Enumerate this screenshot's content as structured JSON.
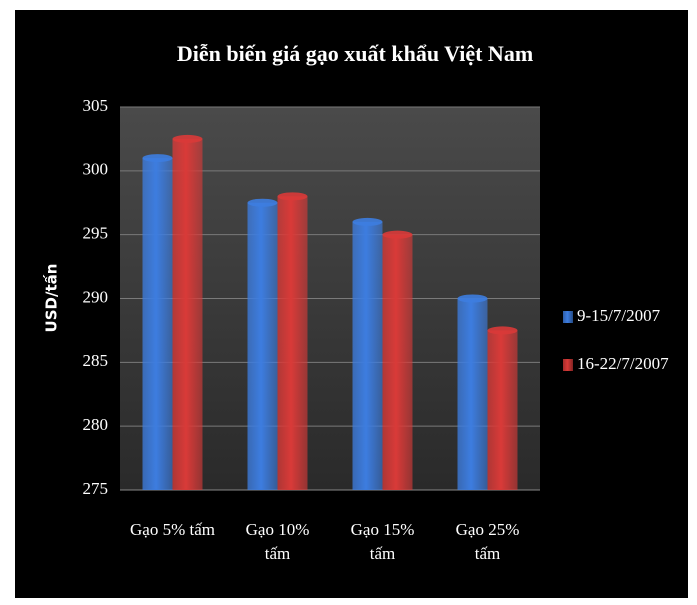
{
  "chart_data": {
    "type": "bar",
    "title": "Diễn biến giá gạo xuất khẩu Việt Nam",
    "y_label": "USD/tấn",
    "categories": [
      "Gạo 5% tấm",
      "Gạo 10% tấm",
      "Gạo 15% tấm",
      "Gạo 25% tấm"
    ],
    "series": [
      {
        "name": "9-15/7/2007",
        "color": "#3d7de0",
        "values": [
          301,
          297.5,
          296,
          290
        ]
      },
      {
        "name": "16-22/7/2007",
        "color": "#d93a38",
        "values": [
          302.5,
          298,
          295,
          287.5
        ]
      }
    ],
    "ylim": [
      275,
      305
    ],
    "yticks": [
      275,
      280,
      285,
      290,
      295,
      300,
      305
    ],
    "grid": true,
    "legend": "right"
  }
}
